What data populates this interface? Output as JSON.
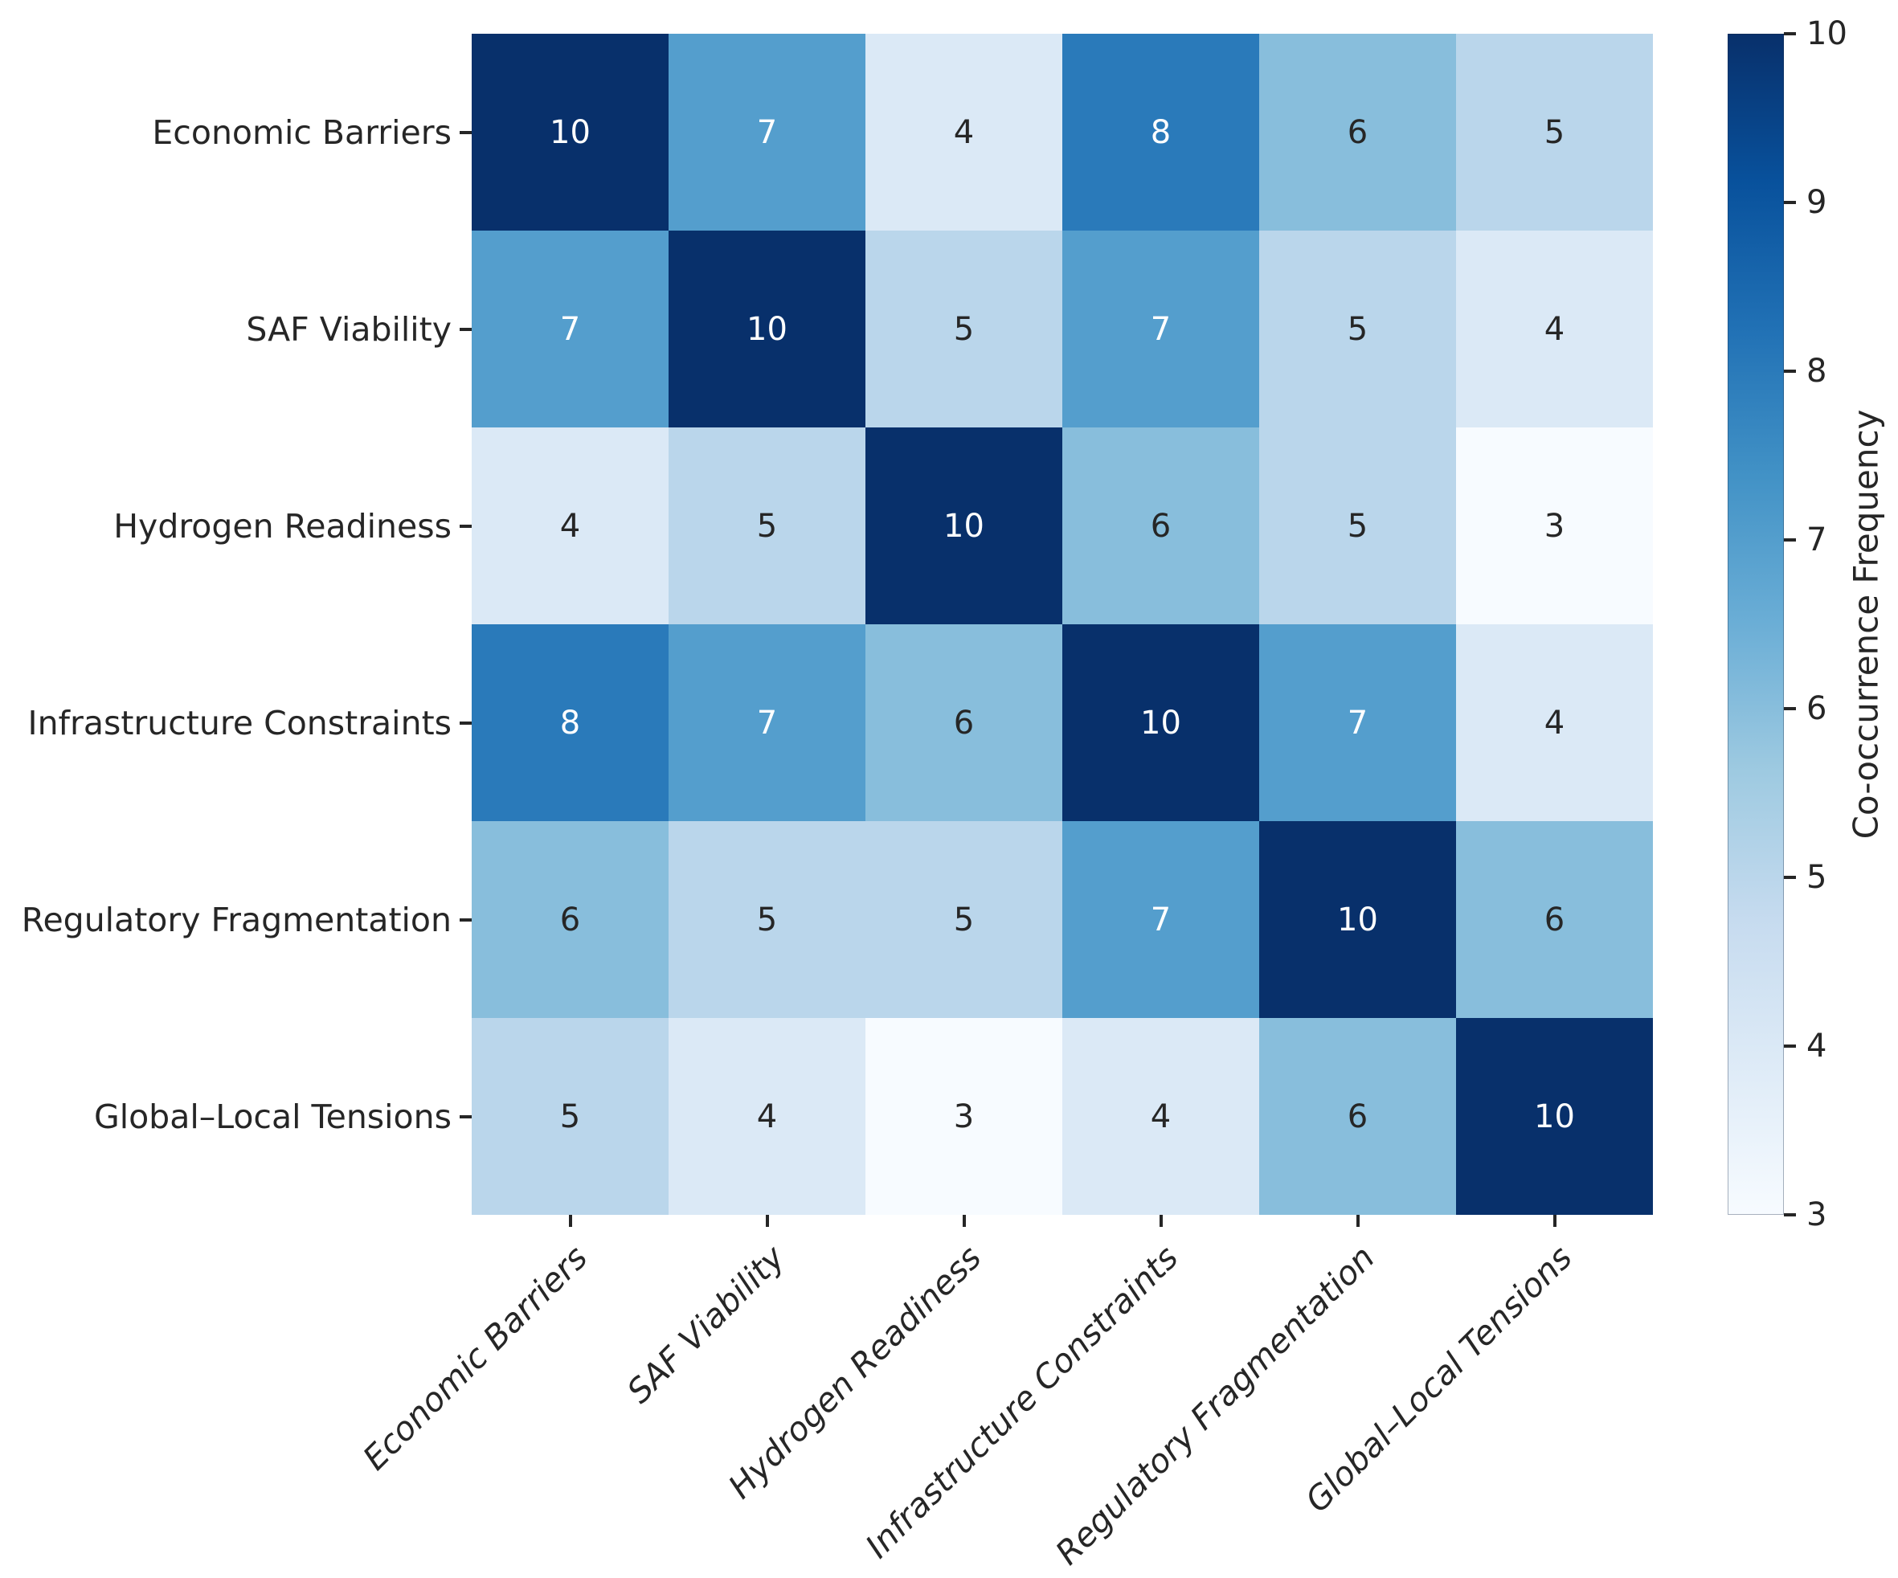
{
  "chart_data": {
    "type": "heatmap",
    "title": "",
    "categories": [
      "Economic Barriers",
      "SAF Viability",
      "Hydrogen Readiness",
      "Infrastructure Constraints",
      "Regulatory Fragmentation",
      "Global–Local Tensions"
    ],
    "matrix": [
      [
        10,
        7,
        4,
        8,
        6,
        5
      ],
      [
        7,
        10,
        5,
        7,
        5,
        4
      ],
      [
        4,
        5,
        10,
        6,
        5,
        3
      ],
      [
        8,
        7,
        6,
        10,
        7,
        4
      ],
      [
        6,
        5,
        5,
        7,
        10,
        6
      ],
      [
        5,
        4,
        3,
        4,
        6,
        10
      ]
    ],
    "value_range": [
      3,
      10
    ],
    "colormap": "Blues",
    "colorbar_label": "Co-occurrence Frequency",
    "colorbar_ticks": [
      10,
      9,
      8,
      7,
      6,
      5,
      4,
      3
    ],
    "legend_position": "right",
    "grid": false,
    "value_colors": {
      "3": "#f7fbff",
      "4": "#dbe9f6",
      "5": "#bad6eb",
      "6": "#88bedc",
      "7": "#549ecd",
      "8": "#2a7aba",
      "9": "#0c56a0",
      "10": "#08306b"
    },
    "annotation_text_colors": {
      "light": "#262626",
      "dark": "#ffffff"
    },
    "white_text_min_value": 7,
    "gradient_stops_top_to_bottom": [
      "#08306b",
      "#08519c",
      "#2171b5",
      "#4292c6",
      "#6baed6",
      "#9ecae1",
      "#c6dbef",
      "#deebf7",
      "#f7fbff"
    ]
  }
}
